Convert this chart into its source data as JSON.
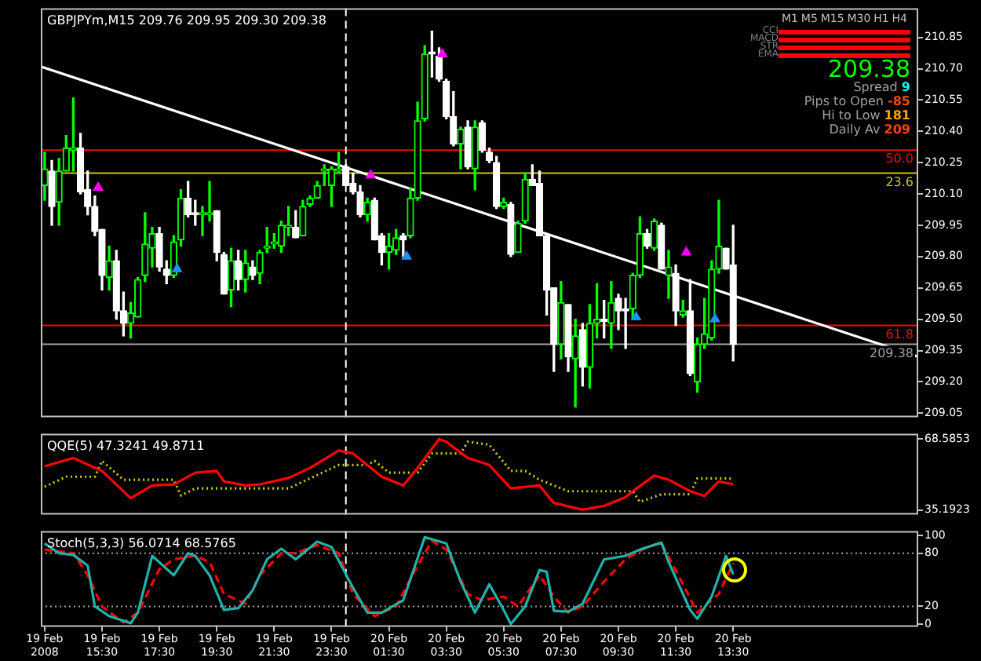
{
  "chart_data": [
    {
      "type": "candlestick",
      "title": "GBPJPYm,M15 209.76 209.95 209.30 209.38",
      "tick_labels": "y",
      "x": [
        "2008-02-19T13:30",
        "2008-02-19T13:45",
        "2008-02-19T14:00",
        "2008-02-19T14:15",
        "2008-02-19T14:30",
        "2008-02-19T14:45",
        "2008-02-19T15:00",
        "2008-02-19T15:15",
        "2008-02-19T15:30",
        "2008-02-19T15:45",
        "2008-02-19T16:00",
        "2008-02-19T16:15",
        "2008-02-19T16:30",
        "2008-02-19T16:45",
        "2008-02-19T17:00",
        "2008-02-19T17:15",
        "2008-02-19T17:30",
        "2008-02-19T17:45",
        "2008-02-19T18:00",
        "2008-02-19T18:15",
        "2008-02-19T18:30",
        "2008-02-19T18:45",
        "2008-02-19T19:00",
        "2008-02-19T19:15",
        "2008-02-19T19:30",
        "2008-02-19T19:45",
        "2008-02-19T20:00",
        "2008-02-19T20:15",
        "2008-02-19T20:30",
        "2008-02-19T20:45",
        "2008-02-19T21:00",
        "2008-02-19T21:15",
        "2008-02-19T21:30",
        "2008-02-19T21:45",
        "2008-02-19T22:00",
        "2008-02-19T22:15",
        "2008-02-19T22:30",
        "2008-02-19T22:45",
        "2008-02-19T23:00",
        "2008-02-19T23:15",
        "2008-02-19T23:30",
        "2008-02-19T23:45",
        "2008-02-20T00:00",
        "2008-02-20T00:15",
        "2008-02-20T00:30",
        "2008-02-20T00:45",
        "2008-02-20T01:00",
        "2008-02-20T01:15",
        "2008-02-20T01:30",
        "2008-02-20T01:45",
        "2008-02-20T02:00",
        "2008-02-20T02:15",
        "2008-02-20T02:30",
        "2008-02-20T02:45",
        "2008-02-20T03:00",
        "2008-02-20T03:15",
        "2008-02-20T03:30",
        "2008-02-20T03:45",
        "2008-02-20T04:00",
        "2008-02-20T04:15",
        "2008-02-20T04:30",
        "2008-02-20T04:45",
        "2008-02-20T05:00",
        "2008-02-20T05:15",
        "2008-02-20T05:30",
        "2008-02-20T05:45",
        "2008-02-20T06:00",
        "2008-02-20T06:15",
        "2008-02-20T06:30",
        "2008-02-20T06:45",
        "2008-02-20T07:00",
        "2008-02-20T07:15",
        "2008-02-20T07:30",
        "2008-02-20T07:45",
        "2008-02-20T08:00",
        "2008-02-20T08:15",
        "2008-02-20T08:30",
        "2008-02-20T08:45",
        "2008-02-20T09:00",
        "2008-02-20T09:15",
        "2008-02-20T09:30",
        "2008-02-20T09:45",
        "2008-02-20T10:00",
        "2008-02-20T10:15",
        "2008-02-20T10:30",
        "2008-02-20T10:45",
        "2008-02-20T11:00",
        "2008-02-20T11:15",
        "2008-02-20T11:30",
        "2008-02-20T11:45",
        "2008-02-20T12:00",
        "2008-02-20T12:15",
        "2008-02-20T12:30",
        "2008-02-20T12:45",
        "2008-02-20T13:00",
        "2008-02-20T13:15",
        "2008-02-20T13:30"
      ],
      "ohlc": [
        [
          210.14,
          210.3,
          210.07,
          210.22
        ],
        [
          210.21,
          210.26,
          209.95,
          210.04
        ],
        [
          210.06,
          210.27,
          209.95,
          210.21
        ],
        [
          210.21,
          210.38,
          210.21,
          210.32
        ],
        [
          210.31,
          210.56,
          210.21,
          210.32
        ],
        [
          210.32,
          210.39,
          210.1,
          210.11
        ],
        [
          210.12,
          210.21,
          210.0,
          210.04
        ],
        [
          210.04,
          210.09,
          209.9,
          209.92
        ],
        [
          209.93,
          209.93,
          209.64,
          209.71
        ],
        [
          209.7,
          209.85,
          209.64,
          209.78
        ],
        [
          209.78,
          209.83,
          209.5,
          209.54
        ],
        [
          209.54,
          209.63,
          209.42,
          209.48
        ],
        [
          209.48,
          209.58,
          209.41,
          209.53
        ],
        [
          209.51,
          209.7,
          209.51,
          209.69
        ],
        [
          209.71,
          210.01,
          209.68,
          209.86
        ],
        [
          209.84,
          209.94,
          209.75,
          209.91
        ],
        [
          209.91,
          209.94,
          209.73,
          209.75
        ],
        [
          209.74,
          209.78,
          209.67,
          209.71
        ],
        [
          209.71,
          209.9,
          209.7,
          209.87
        ],
        [
          209.88,
          210.12,
          209.85,
          210.08
        ],
        [
          210.08,
          210.16,
          209.99,
          210.0
        ],
        [
          210.01,
          210.07,
          209.95,
          210.0
        ],
        [
          210.0,
          210.04,
          209.9,
          210.01
        ],
        [
          210.0,
          210.16,
          209.97,
          210.01
        ],
        [
          210.02,
          210.02,
          209.78,
          209.82
        ],
        [
          209.81,
          209.82,
          209.62,
          209.62
        ],
        [
          209.64,
          209.84,
          209.56,
          209.78
        ],
        [
          209.78,
          209.83,
          209.64,
          209.69
        ],
        [
          209.69,
          209.83,
          209.63,
          209.77
        ],
        [
          209.75,
          209.78,
          209.69,
          209.71
        ],
        [
          209.72,
          209.83,
          209.67,
          209.82
        ],
        [
          209.84,
          209.94,
          209.82,
          209.85
        ],
        [
          209.86,
          209.91,
          209.84,
          209.87
        ],
        [
          209.85,
          209.97,
          209.82,
          209.95
        ],
        [
          209.94,
          210.04,
          209.9,
          209.95
        ],
        [
          209.94,
          210.02,
          209.89,
          209.89
        ],
        [
          209.9,
          210.07,
          209.9,
          210.04
        ],
        [
          210.05,
          210.09,
          210.04,
          210.08
        ],
        [
          210.08,
          210.16,
          210.08,
          210.14
        ],
        [
          210.21,
          210.24,
          210.14,
          210.22
        ],
        [
          210.14,
          210.23,
          210.04,
          210.22
        ],
        [
          210.21,
          210.3,
          210.2,
          210.22
        ],
        [
          210.23,
          210.24,
          210.14,
          210.14
        ],
        [
          210.15,
          210.2,
          210.1,
          210.11
        ],
        [
          210.11,
          210.14,
          209.99,
          210.0
        ],
        [
          210.0,
          210.08,
          209.97,
          210.06
        ],
        [
          210.07,
          210.08,
          209.88,
          209.88
        ],
        [
          209.9,
          209.91,
          209.76,
          209.82
        ],
        [
          209.82,
          209.91,
          209.74,
          209.85
        ],
        [
          209.83,
          209.93,
          209.81,
          209.89
        ],
        [
          209.9,
          209.91,
          209.8,
          209.88
        ],
        [
          209.9,
          210.13,
          209.89,
          210.08
        ],
        [
          210.08,
          210.54,
          210.07,
          210.45
        ],
        [
          210.46,
          210.81,
          210.45,
          210.77
        ],
        [
          210.78,
          210.88,
          210.66,
          210.77
        ],
        [
          210.76,
          210.8,
          210.64,
          210.65
        ],
        [
          210.64,
          210.65,
          210.46,
          210.47
        ],
        [
          210.47,
          210.59,
          210.33,
          210.34
        ],
        [
          210.34,
          210.42,
          210.22,
          210.41
        ],
        [
          210.42,
          210.45,
          210.22,
          210.23
        ],
        [
          210.22,
          210.45,
          210.12,
          210.42
        ],
        [
          210.44,
          210.45,
          210.3,
          210.31
        ],
        [
          210.3,
          210.32,
          210.25,
          210.26
        ],
        [
          210.25,
          210.28,
          210.03,
          210.04
        ],
        [
          210.04,
          210.08,
          210.03,
          210.06
        ],
        [
          210.05,
          210.06,
          209.8,
          209.81
        ],
        [
          209.82,
          209.97,
          209.82,
          209.96
        ],
        [
          209.97,
          210.2,
          209.96,
          210.17
        ],
        [
          210.17,
          210.24,
          210.14,
          210.14
        ],
        [
          210.15,
          210.21,
          209.9,
          209.9
        ],
        [
          209.9,
          209.91,
          209.52,
          209.64
        ],
        [
          209.65,
          209.65,
          209.25,
          209.38
        ],
        [
          209.38,
          209.68,
          209.31,
          209.58
        ],
        [
          209.57,
          209.57,
          209.25,
          209.32
        ],
        [
          209.31,
          209.5,
          209.08,
          209.42
        ],
        [
          209.45,
          209.48,
          209.18,
          209.27
        ],
        [
          209.27,
          209.57,
          209.17,
          209.48
        ],
        [
          209.48,
          209.67,
          209.41,
          209.5
        ],
        [
          209.5,
          209.59,
          209.41,
          209.49
        ],
        [
          209.48,
          209.68,
          209.36,
          209.58
        ],
        [
          209.6,
          209.62,
          209.45,
          209.54
        ],
        [
          209.55,
          209.6,
          209.36,
          209.54
        ],
        [
          209.55,
          209.72,
          209.5,
          209.71
        ],
        [
          209.71,
          209.99,
          209.7,
          209.91
        ],
        [
          209.91,
          209.93,
          209.84,
          209.85
        ],
        [
          209.84,
          209.98,
          209.83,
          209.97
        ],
        [
          209.95,
          209.96,
          209.74,
          209.74
        ],
        [
          209.71,
          209.83,
          209.6,
          209.75
        ],
        [
          209.72,
          209.76,
          209.47,
          209.54
        ],
        [
          209.52,
          209.59,
          209.51,
          209.54
        ],
        [
          209.54,
          209.69,
          209.23,
          209.24
        ],
        [
          209.2,
          209.41,
          209.15,
          209.38
        ],
        [
          209.38,
          209.6,
          209.36,
          209.43
        ],
        [
          209.41,
          209.78,
          209.4,
          209.74
        ],
        [
          209.74,
          210.07,
          209.72,
          209.85
        ],
        [
          209.84,
          209.84,
          209.74,
          209.74
        ],
        [
          209.76,
          209.95,
          209.3,
          209.38
        ]
      ],
      "colors": [
        "#00ff00",
        "#ffffff",
        "#00ff00",
        "#00ff00",
        "#00ff00",
        "#ffffff",
        "#ffffff",
        "#ffffff",
        "#ffffff",
        "#00ff00",
        "#ffffff",
        "#ffffff",
        "#00ff00",
        "#00ff00",
        "#00ff00",
        "#00ff00",
        "#ffffff",
        "#ffffff",
        "#00ff00",
        "#00ff00",
        "#ffffff",
        "#ffffff",
        "#00ff00",
        "#00ff00",
        "#ffffff",
        "#ffffff",
        "#00ff00",
        "#ffffff",
        "#00ff00",
        "#ffffff",
        "#00ff00",
        "#00ff00",
        "#00ff00",
        "#00ff00",
        "#00ff00",
        "#ffffff",
        "#00ff00",
        "#00ff00",
        "#00ff00",
        "#00ff00",
        "#00ff00",
        "#00ff00",
        "#ffffff",
        "#ffffff",
        "#ffffff",
        "#00ff00",
        "#ffffff",
        "#ffffff",
        "#00ff00",
        "#00ff00",
        "#ffffff",
        "#00ff00",
        "#00ff00",
        "#00ff00",
        "#ffffff",
        "#ffffff",
        "#ffffff",
        "#ffffff",
        "#00ff00",
        "#ffffff",
        "#00ff00",
        "#ffffff",
        "#ffffff",
        "#ffffff",
        "#00ff00",
        "#ffffff",
        "#00ff00",
        "#00ff00",
        "#ffffff",
        "#ffffff",
        "#ffffff",
        "#ffffff",
        "#00ff00",
        "#ffffff",
        "#00ff00",
        "#ffffff",
        "#00ff00",
        "#00ff00",
        "#ffffff",
        "#00ff00",
        "#ffffff",
        "#ffffff",
        "#00ff00",
        "#00ff00",
        "#ffffff",
        "#00ff00",
        "#ffffff",
        "#00ff00",
        "#ffffff",
        "#00ff00",
        "#ffffff",
        "#00ff00",
        "#00ff00",
        "#00ff00",
        "#00ff00",
        "#ffffff",
        "#ffffff"
      ],
      "series": [
        {
          "type": "line",
          "color": "#ffffff",
          "x": [
            "2008-02-19T13:22",
            "2008-02-20T19:57"
          ],
          "values": [
            210.71,
            209.32
          ]
        },
        {
          "type": "scatter",
          "color": "#ff00ff",
          "marker": "triangle",
          "x": [
            "2008-02-19T15:22",
            "2008-02-20T00:52",
            "2008-02-20T03:22",
            "2008-02-20T11:52"
          ],
          "values": [
            210.13,
            210.19,
            210.77,
            209.82
          ]
        },
        {
          "type": "scatter",
          "color": "#1e90ff",
          "marker": "triangle",
          "x": [
            "2008-02-19T18:07",
            "2008-02-20T02:07",
            "2008-02-20T10:07",
            "2008-02-20T12:52"
          ],
          "values": [
            209.74,
            209.8,
            209.51,
            209.5
          ]
        }
      ],
      "xlim": [
        "2008-02-19T13:22",
        "2008-02-20T19:57"
      ],
      "ylim": [
        209.03,
        210.99
      ],
      "yticks": [
        {
          "value": 209.05,
          "label": "209.05"
        },
        {
          "value": 209.2,
          "label": "209.20"
        },
        {
          "value": 209.35,
          "label": "209.35"
        },
        {
          "value": 209.5,
          "label": "209.50"
        },
        {
          "value": 209.65,
          "label": "209.65"
        },
        {
          "value": 209.8,
          "label": "209.80"
        },
        {
          "value": 209.95,
          "label": "209.95"
        },
        {
          "value": 210.1,
          "label": "210.10"
        },
        {
          "value": 210.25,
          "label": "210.25"
        },
        {
          "value": 210.4,
          "label": "210.40"
        },
        {
          "value": 210.55,
          "label": "210.55"
        },
        {
          "value": 210.7,
          "label": "210.70"
        },
        {
          "value": 210.85,
          "label": "210.85"
        }
      ],
      "annotations": [
        {
          "text": "50.0",
          "x": "2008-02-20T19:57",
          "y": 210.31
        },
        {
          "text": "23.6",
          "x": "2008-02-20T19:57",
          "y": 210.2
        },
        {
          "text": "61.8",
          "x": "2008-02-20T19:57",
          "y": 209.47
        }
      ],
      "ref_lines": [
        {
          "axis": "y",
          "value": 210.31,
          "color": "#ff0000"
        },
        {
          "axis": "y",
          "value": 210.2,
          "color": "#c8c800"
        },
        {
          "axis": "y",
          "value": 209.47,
          "color": "#ff0000"
        },
        {
          "axis": "y",
          "value": 209.38,
          "label": "209.38",
          "color": "#a0a0a0"
        },
        {
          "axis": "x",
          "value": "2008-02-20T00:00",
          "color": "#ffffff",
          "line_style": "dashed"
        }
      ]
    },
    {
      "type": "line",
      "title": "QQE(5) 47.3241 49.8711",
      "tick_labels": "y",
      "series": [
        {
          "color": "#ff0000",
          "x": [
            "2008-02-19T13:30",
            "2008-02-19T14:30",
            "2008-02-19T15:30",
            "2008-02-19T16:30",
            "2008-02-19T17:15",
            "2008-02-19T18:00",
            "2008-02-19T18:45",
            "2008-02-19T19:30",
            "2008-02-19T19:45",
            "2008-02-19T20:30",
            "2008-02-19T21:00",
            "2008-02-19T22:00",
            "2008-02-19T22:45",
            "2008-02-19T23:45",
            "2008-02-20T00:15",
            "2008-02-20T01:15",
            "2008-02-20T02:00",
            "2008-02-20T02:30",
            "2008-02-20T03:15",
            "2008-02-20T03:30",
            "2008-02-20T04:15",
            "2008-02-20T05:00",
            "2008-02-20T05:45",
            "2008-02-20T06:45",
            "2008-02-20T07:15",
            "2008-02-20T08:15",
            "2008-02-20T09:00",
            "2008-02-20T09:45",
            "2008-02-20T10:00",
            "2008-02-20T10:45",
            "2008-02-20T11:15",
            "2008-02-20T12:00",
            "2008-02-20T12:30",
            "2008-02-20T13:00",
            "2008-02-20T13:30"
          ],
          "values": [
            55.7,
            59.6,
            53.5,
            40.7,
            46.7,
            47.2,
            52.7,
            53.5,
            48.6,
            46.7,
            47.2,
            50.2,
            54.9,
            63.1,
            61.7,
            50.8,
            46.7,
            54.9,
            68.5,
            67.2,
            59.6,
            56.3,
            45.3,
            46.7,
            38.5,
            35.3,
            37.1,
            41.2,
            44.0,
            51.3,
            49.4,
            44.0,
            41.8,
            48.6,
            47.3
          ]
        },
        {
          "color": "#cccc00",
          "line_style": "dotted",
          "x": [
            "2008-02-19T13:30",
            "2008-02-19T14:15",
            "2008-02-19T15:15",
            "2008-02-19T15:30",
            "2008-02-19T16:15",
            "2008-02-19T18:00",
            "2008-02-19T18:15",
            "2008-02-19T18:45",
            "2008-02-19T22:00",
            "2008-02-19T23:45",
            "2008-02-20T00:45",
            "2008-02-20T01:00",
            "2008-02-20T01:30",
            "2008-02-20T02:30",
            "2008-02-20T03:00",
            "2008-02-20T04:00",
            "2008-02-20T04:15",
            "2008-02-20T05:00",
            "2008-02-20T05:45",
            "2008-02-20T06:15",
            "2008-02-20T06:45",
            "2008-02-20T07:45",
            "2008-02-20T10:00",
            "2008-02-20T10:15",
            "2008-02-20T11:00",
            "2008-02-20T12:00",
            "2008-02-20T12:15",
            "2008-02-20T13:15",
            "2008-02-20T13:30"
          ],
          "values": [
            46.1,
            50.8,
            50.8,
            58.2,
            49.4,
            49.4,
            42.0,
            45.3,
            45.3,
            56.3,
            56.3,
            58.2,
            52.7,
            52.7,
            61.7,
            61.7,
            67.2,
            65.8,
            53.5,
            53.5,
            49.4,
            44.0,
            44.0,
            39.0,
            42.6,
            42.6,
            50.0,
            50.0,
            49.9
          ]
        }
      ],
      "xlim": [
        "2008-02-19T13:22",
        "2008-02-20T19:57"
      ],
      "ylim": [
        33,
        71
      ],
      "yticks": [
        35.1923,
        68.5853
      ],
      "ref_lines": [
        {
          "axis": "x",
          "value": "2008-02-20T00:00",
          "color": "#ffffff",
          "line_style": "dashed"
        }
      ]
    },
    {
      "type": "line",
      "title": "Stoch(5,3,3) 56.0714 68.5765",
      "series": [
        {
          "color": "#20b2aa",
          "x": [
            "2008-02-19T13:30",
            "2008-02-19T14:00",
            "2008-02-19T14:30",
            "2008-02-19T15:00",
            "2008-02-19T15:15",
            "2008-02-19T15:45",
            "2008-02-19T16:30",
            "2008-02-19T16:45",
            "2008-02-19T17:15",
            "2008-02-19T18:00",
            "2008-02-19T18:30",
            "2008-02-19T18:45",
            "2008-02-19T19:15",
            "2008-02-19T19:45",
            "2008-02-19T20:15",
            "2008-02-19T20:45",
            "2008-02-19T21:15",
            "2008-02-19T21:45",
            "2008-02-19T22:15",
            "2008-02-19T23:00",
            "2008-02-19T23:30",
            "2008-02-20T00:15",
            "2008-02-20T00:45",
            "2008-02-20T01:15",
            "2008-02-20T02:00",
            "2008-02-20T02:45",
            "2008-02-20T03:30",
            "2008-02-20T04:00",
            "2008-02-20T04:30",
            "2008-02-20T05:00",
            "2008-02-20T05:30",
            "2008-02-20T05:45",
            "2008-02-20T06:15",
            "2008-02-20T06:45",
            "2008-02-20T07:00",
            "2008-02-20T07:15",
            "2008-02-20T07:45",
            "2008-02-20T08:15",
            "2008-02-20T09:00",
            "2008-02-20T09:45",
            "2008-02-20T10:15",
            "2008-02-20T11:00",
            "2008-02-20T11:15",
            "2008-02-20T12:00",
            "2008-02-20T12:15",
            "2008-02-20T12:45",
            "2008-02-20T13:15",
            "2008-02-20T13:30"
          ],
          "values": [
            91,
            80,
            78,
            66,
            20,
            9,
            1,
            13,
            77,
            55,
            80,
            77,
            55,
            16,
            18,
            38,
            73,
            85,
            73,
            93,
            87,
            41,
            13,
            13,
            27,
            98,
            91,
            48,
            13,
            45,
            16,
            0,
            20,
            61,
            59,
            15,
            14,
            23,
            73,
            77,
            84,
            92,
            70,
            16,
            6,
            31,
            77,
            56
          ]
        },
        {
          "color": "#ff0000",
          "line_style": "dashed",
          "x": [
            "2008-02-19T13:30",
            "2008-02-19T14:30",
            "2008-02-19T15:00",
            "2008-02-19T15:30",
            "2008-02-19T16:15",
            "2008-02-19T16:45",
            "2008-02-19T17:30",
            "2008-02-19T18:00",
            "2008-02-19T18:45",
            "2008-02-19T19:15",
            "2008-02-19T19:45",
            "2008-02-19T20:30",
            "2008-02-19T21:00",
            "2008-02-19T21:45",
            "2008-02-19T22:15",
            "2008-02-19T23:00",
            "2008-02-19T23:45",
            "2008-02-20T00:15",
            "2008-02-20T01:00",
            "2008-02-20T01:45",
            "2008-02-20T02:30",
            "2008-02-20T03:00",
            "2008-02-20T03:30",
            "2008-02-20T04:15",
            "2008-02-20T04:45",
            "2008-02-20T05:30",
            "2008-02-20T06:00",
            "2008-02-20T06:45",
            "2008-02-20T07:15",
            "2008-02-20T07:45",
            "2008-02-20T08:15",
            "2008-02-20T09:00",
            "2008-02-20T09:45",
            "2008-02-20T10:30",
            "2008-02-20T11:00",
            "2008-02-20T11:45",
            "2008-02-20T12:15",
            "2008-02-20T13:00",
            "2008-02-20T13:30"
          ],
          "values": [
            84,
            80,
            55,
            20,
            2,
            13,
            62,
            73,
            77,
            70,
            34,
            23,
            55,
            80,
            80,
            89,
            80,
            34,
            9,
            20,
            66,
            94,
            84,
            34,
            27,
            31,
            20,
            55,
            31,
            13,
            20,
            48,
            73,
            87,
            91,
            45,
            13,
            34,
            69
          ]
        }
      ],
      "xlim": [
        "2008-02-19T13:22",
        "2008-02-20T19:57"
      ],
      "xticks": [
        {
          "value": "2008-02-19T13:30",
          "label": "19 Feb 2008"
        },
        {
          "value": "2008-02-19T15:30",
          "label": "19 Feb 15:30"
        },
        {
          "value": "2008-02-19T17:30",
          "label": "19 Feb 17:30"
        },
        {
          "value": "2008-02-19T19:30",
          "label": "19 Feb 19:30"
        },
        {
          "value": "2008-02-19T21:30",
          "label": "19 Feb 21:30"
        },
        {
          "value": "2008-02-19T23:30",
          "label": "19 Feb 23:30"
        },
        {
          "value": "2008-02-20T01:30",
          "label": "20 Feb 01:30"
        },
        {
          "value": "2008-02-20T03:30",
          "label": "20 Feb 03:30"
        },
        {
          "value": "2008-02-20T05:30",
          "label": "20 Feb 05:30"
        },
        {
          "value": "2008-02-20T07:30",
          "label": "20 Feb 07:30"
        },
        {
          "value": "2008-02-20T09:30",
          "label": "20 Feb 09:30"
        },
        {
          "value": "2008-02-20T11:30",
          "label": "20 Feb 11:30"
        },
        {
          "value": "2008-02-20T13:30",
          "label": "20 Feb 13:30"
        }
      ],
      "ylim": [
        -3,
        105
      ],
      "yticks": [
        0,
        20,
        80,
        100
      ],
      "ref_lines": [
        {
          "axis": "y",
          "value": 20,
          "color": "#a0a0a0",
          "line_style": "dotted"
        },
        {
          "axis": "y",
          "value": 80,
          "color": "#a0a0a0",
          "line_style": "dotted"
        },
        {
          "axis": "x",
          "value": "2008-02-20T00:00",
          "color": "#ffffff",
          "line_style": "dashed"
        }
      ]
    },
    {
      "type": "other",
      "categories": [
        "M1",
        "M5",
        "M15",
        "M30",
        "H1",
        "H4"
      ],
      "y_categories": [
        "CCI",
        "MACD",
        "STR",
        "EMA"
      ],
      "colors": [
        "#ff0000",
        "#ff0000",
        "#ff0000",
        "#ff0000"
      ],
      "annotations": [
        "209.38",
        "Spread",
        "9",
        "Pips to Open",
        "-85",
        "Hi to Low",
        "181",
        "Daily Av",
        "209"
      ]
    }
  ]
}
